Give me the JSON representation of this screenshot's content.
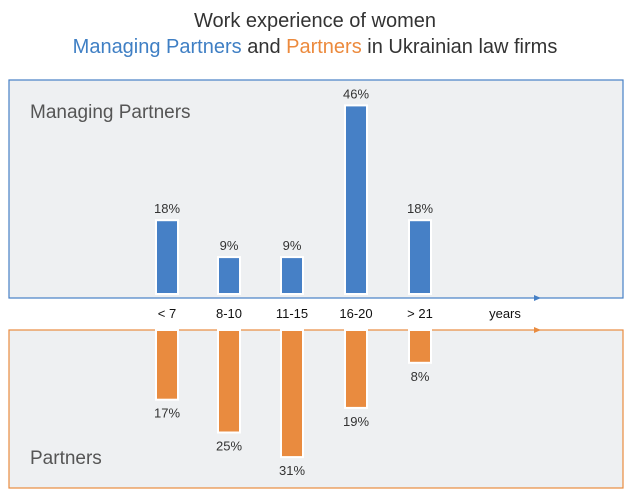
{
  "title": {
    "line1": "Work experience of women",
    "managing": "Managing Partners",
    "and": " and ",
    "partners": "Partners",
    "suffix": " in Ukrainian law firms"
  },
  "colors": {
    "managing": "#4680c6",
    "partners": "#e98b3f",
    "panel_bg": "#eef0f2",
    "text": "#333333"
  },
  "chart_data": {
    "type": "bar",
    "categories": [
      "< 7",
      "8-10",
      "11-15",
      "16-20",
      "> 21"
    ],
    "xlabel": "years",
    "series": [
      {
        "name": "Managing Partners",
        "values": [
          18,
          9,
          9,
          46,
          18
        ],
        "labels": [
          "18%",
          "9%",
          "9%",
          "46%",
          "18%"
        ],
        "direction": "up"
      },
      {
        "name": "Partners",
        "values": [
          17,
          25,
          31,
          19,
          8
        ],
        "labels": [
          "17%",
          "25%",
          "31%",
          "19%",
          "8%"
        ],
        "direction": "down"
      }
    ],
    "ylim": [
      0,
      50
    ],
    "grid": false
  }
}
